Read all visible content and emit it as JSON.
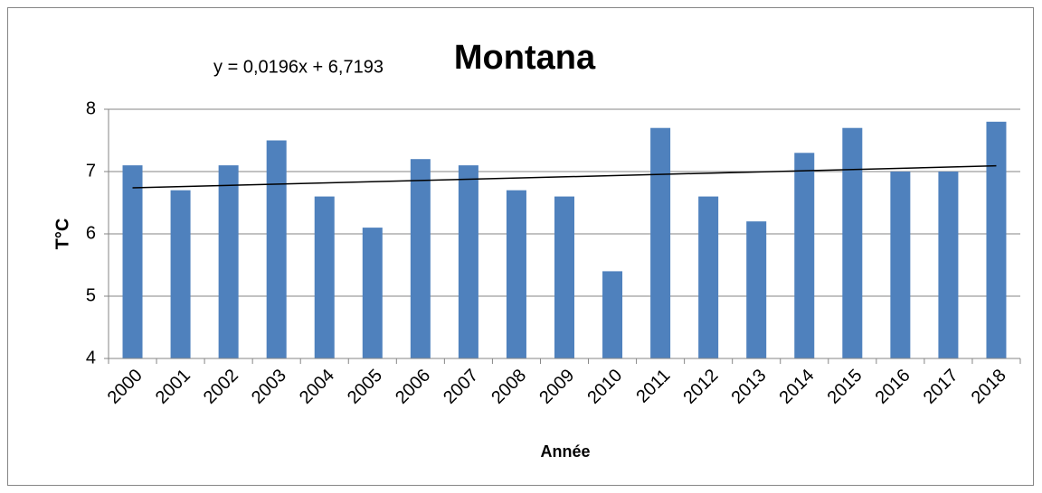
{
  "chart_data": {
    "type": "bar",
    "title": "Montana",
    "xlabel": "Année",
    "ylabel": "T°C",
    "categories": [
      "2000",
      "2001",
      "2002",
      "2003",
      "2004",
      "2005",
      "2006",
      "2007",
      "2008",
      "2009",
      "2010",
      "2011",
      "2012",
      "2013",
      "2014",
      "2015",
      "2016",
      "2017",
      "2018"
    ],
    "values": [
      7.1,
      6.7,
      7.1,
      7.5,
      6.6,
      6.1,
      7.2,
      7.1,
      6.7,
      6.6,
      5.4,
      7.7,
      6.6,
      6.2,
      7.3,
      7.7,
      7.0,
      7.0,
      7.8
    ],
    "color": "#4f81bd",
    "ylim": [
      4,
      8
    ],
    "yticks": [
      4,
      5,
      6,
      7,
      8
    ],
    "grid": true,
    "trendline": {
      "slope": 0.0196,
      "intercept": 6.7193,
      "color": "#000000",
      "label": "y = 0,0196x + 6,7193"
    }
  }
}
